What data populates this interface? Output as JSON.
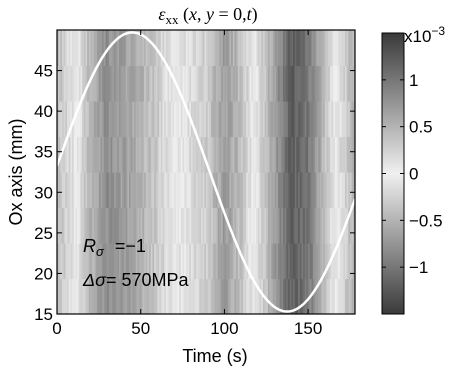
{
  "chart_data": {
    "type": "heatmap",
    "title_parts": {
      "symbol": "ε",
      "subscript": "xx",
      "args_open": " (",
      "arg_x": "x",
      "arg_sep1": ", ",
      "arg_y": "y",
      "arg_eq": " = 0,",
      "arg_t": "t",
      "args_close": ")"
    },
    "xlabel": "Time (s)",
    "ylabel": "Ox axis (mm)",
    "xlim": [
      0,
      178
    ],
    "ylim": [
      15,
      50
    ],
    "x_ticks": [
      0,
      50,
      100,
      150
    ],
    "x_tick_labels": [
      "0",
      "50",
      "100",
      "150"
    ],
    "y_ticks": [
      15,
      20,
      25,
      30,
      35,
      40,
      45
    ],
    "y_tick_labels": [
      "15",
      "20",
      "25",
      "30",
      "35",
      "40",
      "45"
    ],
    "colorbar": {
      "scale_label": "x10",
      "scale_exponent": "−3",
      "range": [
        -1.5,
        1.5
      ],
      "ticks": [
        -1,
        -0.5,
        0,
        0.5,
        1
      ],
      "tick_labels": [
        "−1",
        "−0.5",
        "0",
        "0.5",
        "1"
      ]
    },
    "strain_profile": {
      "time_s": [
        0,
        10,
        20,
        30,
        45,
        60,
        75,
        90,
        100,
        110,
        125,
        140,
        150,
        160,
        170,
        178
      ],
      "strain_x1e3": [
        0.4,
        0.1,
        -0.5,
        -0.8,
        -0.6,
        -0.3,
        0.1,
        0.3,
        0.7,
        0.4,
        -0.4,
        -1.2,
        -1.0,
        -0.4,
        0.2,
        0.5
      ]
    },
    "overlay_curve": {
      "description_hidden": true,
      "t0_s": 0,
      "period_s": 185,
      "phase_peak_s": 45,
      "y_center_mm": 32.5,
      "y_amplitude_mm": 17.2
    },
    "annotations": {
      "r_symbol": "R",
      "r_sub": "σ",
      "r_value": " =−1",
      "ds_symbol": "Δσ",
      "ds_value": "= 570MPa"
    }
  }
}
